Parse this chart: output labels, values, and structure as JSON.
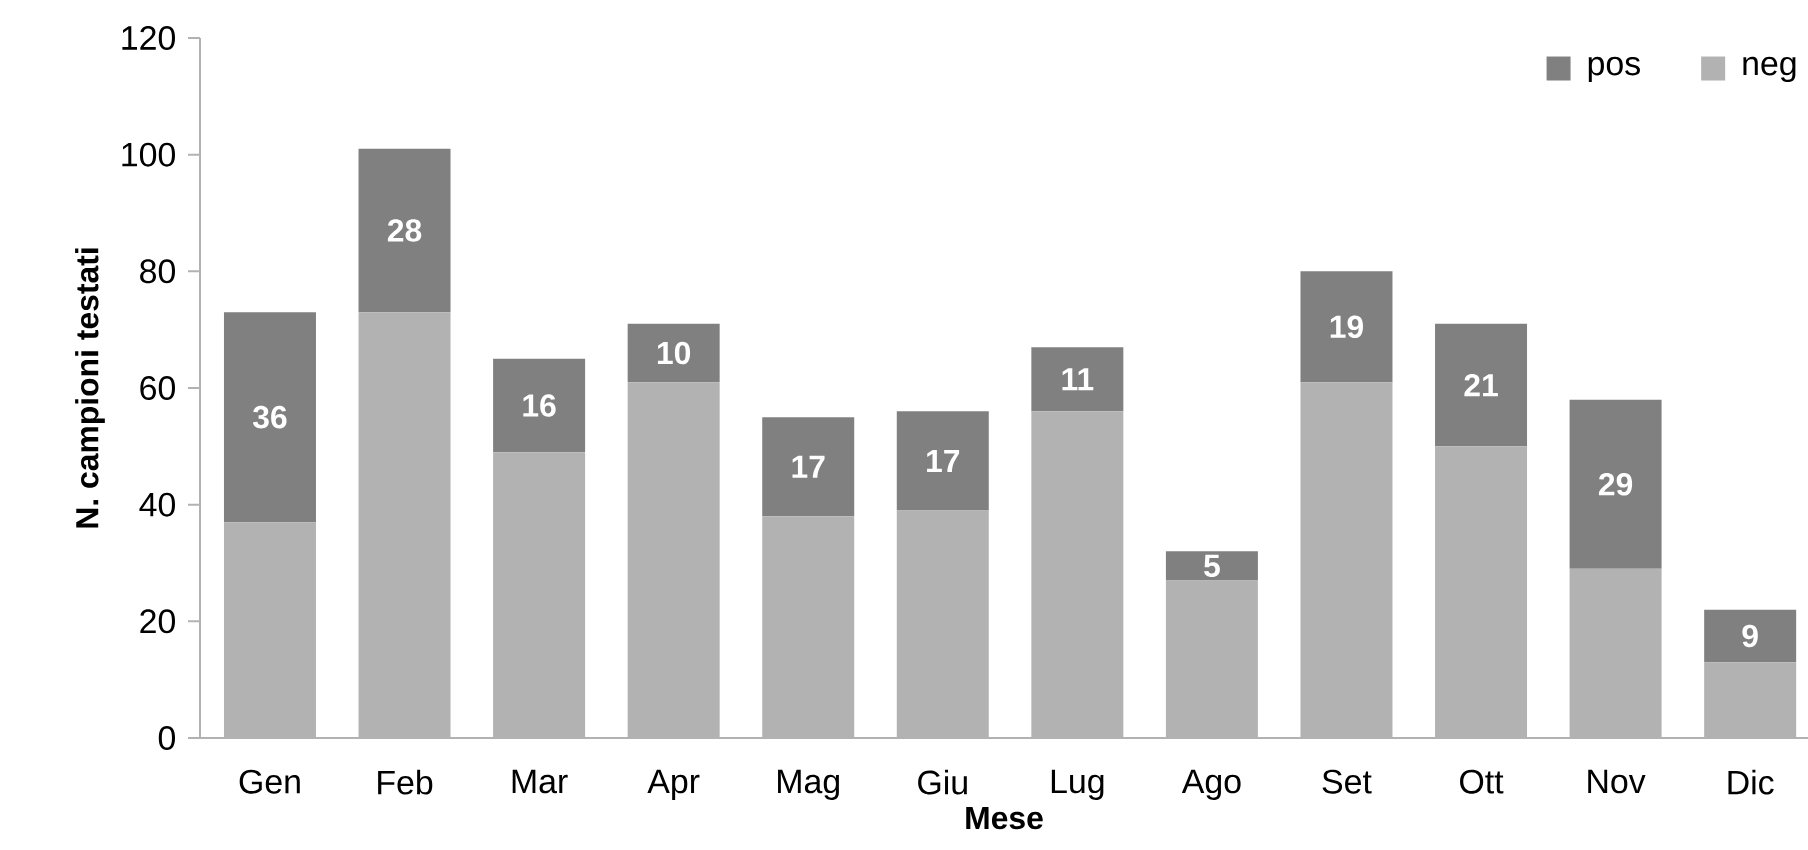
{
  "chart_data": {
    "type": "bar",
    "stacked": true,
    "xlabel": "Mese",
    "ylabel": "N. campioni testati",
    "categories": [
      "Gen",
      "Feb",
      "Mar",
      "Apr",
      "Mag",
      "Giu",
      "Lug",
      "Ago",
      "Set",
      "Ott",
      "Nov",
      "Dic"
    ],
    "series": [
      {
        "name": "neg",
        "color": "#b2b2b2",
        "values": [
          37,
          73,
          49,
          61,
          38,
          39,
          56,
          27,
          61,
          50,
          29,
          13
        ]
      },
      {
        "name": "pos",
        "color": "#808080",
        "values": [
          36,
          28,
          16,
          10,
          17,
          17,
          11,
          5,
          19,
          21,
          29,
          9
        ],
        "value_labels": [
          "36",
          "28",
          "16",
          "10",
          "17",
          "17",
          "11",
          "5",
          "19",
          "21",
          "29",
          "9"
        ]
      }
    ],
    "ylim": [
      0,
      120
    ],
    "yticks": [
      0,
      20,
      40,
      60,
      80,
      100,
      120
    ],
    "legend": "top right"
  }
}
